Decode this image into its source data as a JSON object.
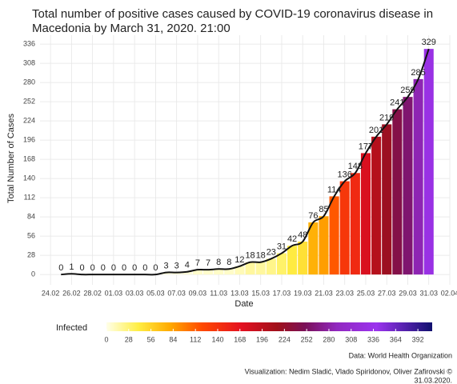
{
  "chart_data": {
    "type": "bar",
    "title": "Total number of positive cases caused by COVID-19 coronavirus disease in",
    "subtitle": "Macedonia by March 31, 2020. 21:00",
    "x_label": "Date",
    "y_label": "Total Number of Cases",
    "x": [
      "25.02",
      "26.02",
      "27.02",
      "28.02",
      "29.02",
      "01.03",
      "02.03",
      "03.03",
      "04.03",
      "05.03",
      "06.03",
      "07.03",
      "08.03",
      "09.03",
      "10.03",
      "11.03",
      "12.03",
      "13.03",
      "14.03",
      "15.03",
      "16.03",
      "17.03",
      "18.03",
      "19.03",
      "20.03",
      "21.03",
      "22.03",
      "23.03",
      "24.03",
      "25.03",
      "26.03",
      "27.03",
      "28.03",
      "29.03",
      "30.03",
      "31.03"
    ],
    "values": [
      0,
      1,
      0,
      0,
      0,
      0,
      0,
      0,
      0,
      0,
      3,
      3,
      4,
      7,
      7,
      8,
      8,
      12,
      18,
      18,
      23,
      31,
      42,
      48,
      76,
      85,
      114,
      136,
      148,
      177,
      201,
      219,
      241,
      259,
      285,
      329
    ],
    "xlim": [
      "23.02",
      "02.04"
    ],
    "xticks": [
      "24.02",
      "26.02",
      "28.02",
      "01.03",
      "03.03",
      "05.03",
      "07.03",
      "09.03",
      "11.03",
      "13.03",
      "15.03",
      "17.03",
      "19.03",
      "21.03",
      "23.03",
      "25.03",
      "27.03",
      "29.03",
      "31.03",
      "02.04"
    ],
    "ylim": [
      -15,
      349
    ],
    "yticks": [
      0,
      28,
      56,
      84,
      112,
      140,
      168,
      196,
      224,
      252,
      280,
      308,
      336
    ],
    "grid": true,
    "line_color": "#111111",
    "legend_title": "Infected",
    "color_scale": {
      "limits": [
        0,
        410
      ],
      "ticks": [
        0,
        28,
        56,
        84,
        112,
        140,
        168,
        196,
        224,
        252,
        280,
        308,
        336,
        364,
        392
      ],
      "stops": [
        [
          0,
          "#ffffe8"
        ],
        [
          40,
          "#ffee44"
        ],
        [
          80,
          "#ffaa00"
        ],
        [
          120,
          "#ff4a00"
        ],
        [
          170,
          "#e41020"
        ],
        [
          215,
          "#a0101a"
        ],
        [
          250,
          "#7a1058"
        ],
        [
          290,
          "#9128c0"
        ],
        [
          340,
          "#9b33ee"
        ],
        [
          410,
          "#10106e"
        ]
      ]
    },
    "source": "Data: World Health Organization",
    "credit": "Visualization: Nedim Sladić, Vlado Spiridonov, Oliver Zafirovski ©",
    "credit_date": "31.03.2020."
  }
}
